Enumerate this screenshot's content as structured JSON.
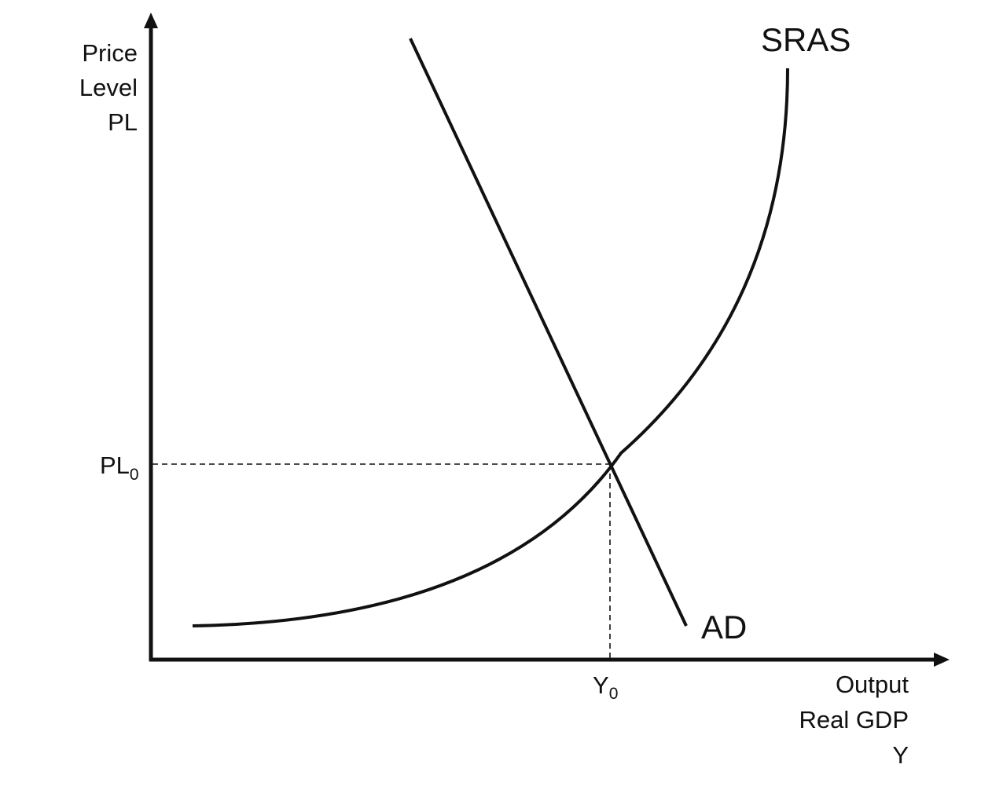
{
  "diagram": {
    "y_axis_label": [
      "Price",
      "Level",
      "PL"
    ],
    "x_axis_label": [
      "Output",
      "Real GDP",
      "Y"
    ],
    "curves": {
      "sras_label": "SRAS",
      "ad_label": "AD"
    },
    "equilibrium": {
      "price_label": {
        "main": "PL",
        "sub": "0"
      },
      "output_label": {
        "main": "Y",
        "sub": "0"
      }
    },
    "colors": {
      "ink": "#111111",
      "background": "#ffffff"
    }
  }
}
